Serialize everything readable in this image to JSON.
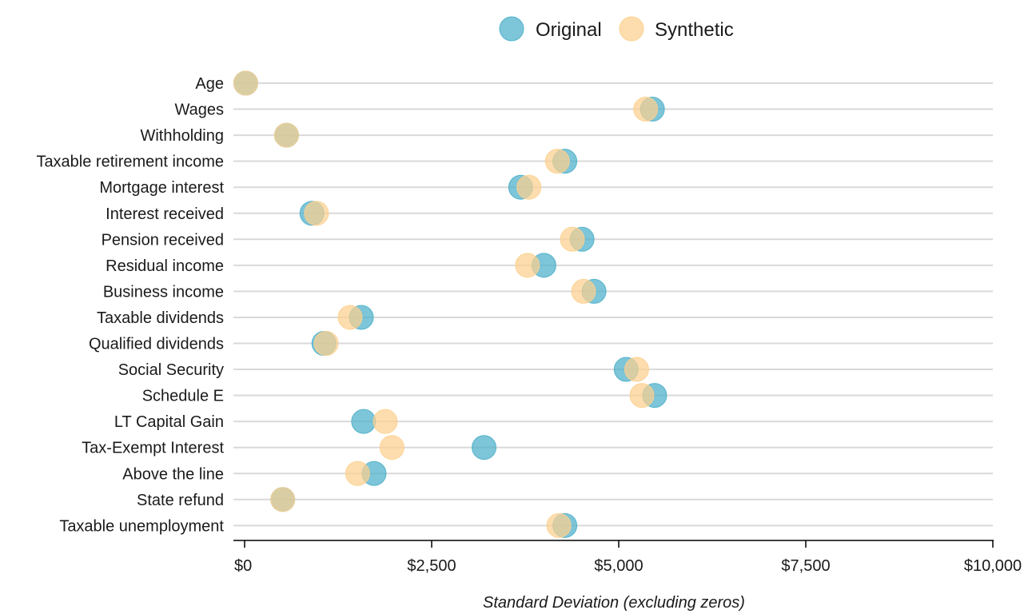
{
  "chart_data": {
    "type": "scatter",
    "xlabel": "Standard Deviation (excluding zeros)",
    "xlim": [
      0,
      10000
    ],
    "x_ticks": [
      0,
      2500,
      5000,
      7500,
      10000
    ],
    "x_tick_labels": [
      "$0",
      "$2,500",
      "$5,000",
      "$7,500",
      "$10,000"
    ],
    "legend_position": "top-center",
    "grid": "horizontal",
    "categories": [
      "Age",
      "Wages",
      "Withholding",
      "Taxable retirement income",
      "Mortgage interest",
      "Interest received",
      "Pension received",
      "Residual income",
      "Business income",
      "Taxable dividends",
      "Qualified dividends",
      "Social Security",
      "Schedule E",
      "LT Capital Gain",
      "Tax-Exempt Interest",
      "Above the line",
      "State refund",
      "Taxable unemployment"
    ],
    "series": [
      {
        "name": "Original",
        "color": "#4bafc9",
        "values": [
          15,
          5450,
          560,
          4280,
          3690,
          900,
          4510,
          4000,
          4670,
          1560,
          1060,
          5100,
          5480,
          1590,
          3200,
          1730,
          510,
          4280
        ]
      },
      {
        "name": "Synthetic",
        "color": "#fcd08f",
        "values": [
          15,
          5360,
          560,
          4180,
          3800,
          960,
          4380,
          3780,
          4530,
          1410,
          1090,
          5240,
          5310,
          1880,
          1970,
          1510,
          510,
          4200
        ]
      }
    ]
  }
}
